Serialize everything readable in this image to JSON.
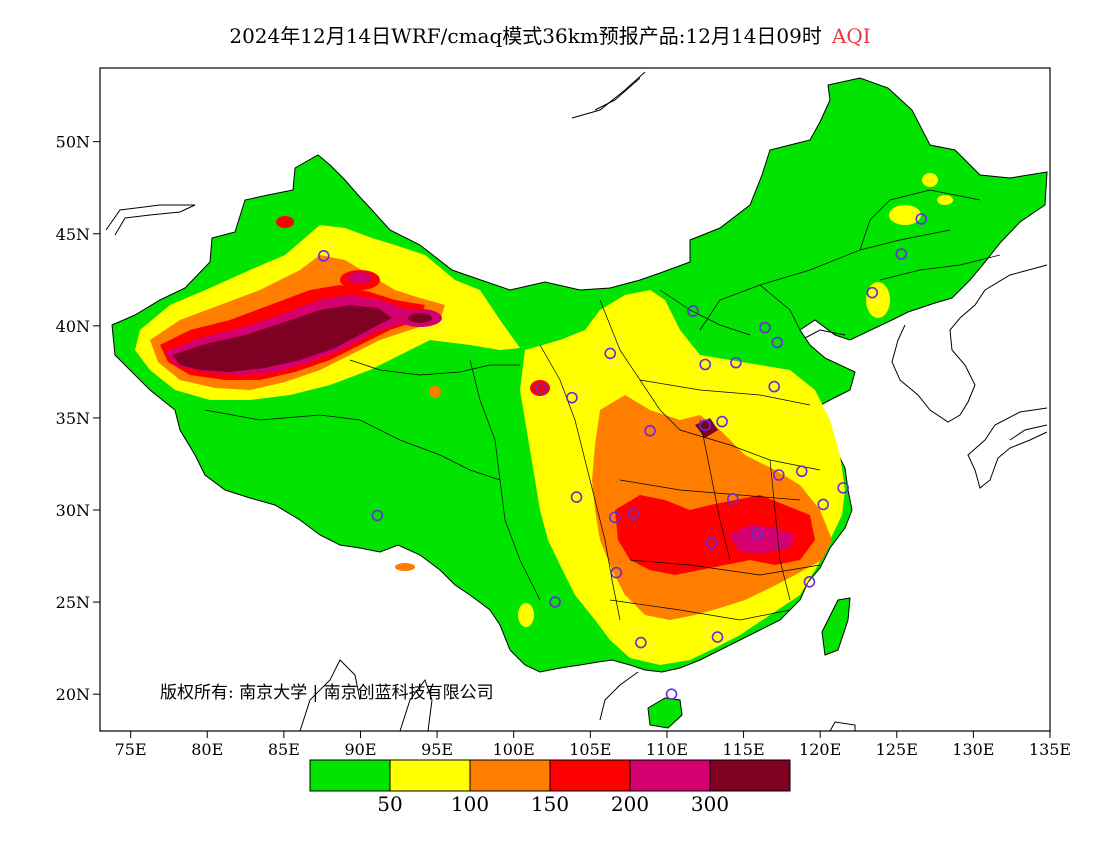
{
  "title": {
    "main": "2024年12月14日WRF/cmaq模式36km预报产品:12月14日09时",
    "variable": "AQI"
  },
  "copyright": "版权所有: 南京大学 | 南京创蓝科技有限公司",
  "axes": {
    "lon_ticks": [
      "75E",
      "80E",
      "85E",
      "90E",
      "95E",
      "100E",
      "105E",
      "110E",
      "115E",
      "120E",
      "125E",
      "130E",
      "135E"
    ],
    "lat_ticks": [
      "50N",
      "45N",
      "40N",
      "35N",
      "30N",
      "25N",
      "20N"
    ],
    "lon_range": [
      73,
      135
    ],
    "lat_range": [
      18,
      54
    ]
  },
  "legend": {
    "colors": [
      "#00e400",
      "#ffff00",
      "#ff7e00",
      "#ff0000",
      "#d4006f",
      "#7e0023"
    ],
    "labels": [
      "50",
      "100",
      "150",
      "200",
      "300"
    ]
  },
  "stations": [
    [
      87.6,
      43.8
    ],
    [
      126.6,
      45.8
    ],
    [
      125.3,
      43.9
    ],
    [
      123.4,
      41.8
    ],
    [
      116.4,
      39.9
    ],
    [
      117.2,
      39.1
    ],
    [
      111.7,
      40.8
    ],
    [
      106.3,
      38.5
    ],
    [
      112.5,
      37.9
    ],
    [
      114.5,
      38.0
    ],
    [
      117.0,
      36.7
    ],
    [
      101.8,
      36.6
    ],
    [
      103.8,
      36.1
    ],
    [
      108.9,
      34.3
    ],
    [
      113.6,
      34.8
    ],
    [
      112.5,
      34.6
    ],
    [
      118.8,
      32.1
    ],
    [
      117.3,
      31.9
    ],
    [
      120.2,
      30.3
    ],
    [
      121.5,
      31.2
    ],
    [
      114.3,
      30.6
    ],
    [
      112.9,
      28.2
    ],
    [
      115.9,
      28.7
    ],
    [
      119.3,
      26.1
    ],
    [
      104.1,
      30.7
    ],
    [
      106.6,
      29.6
    ],
    [
      106.7,
      26.6
    ],
    [
      102.7,
      25.0
    ],
    [
      108.3,
      22.8
    ],
    [
      113.3,
      23.1
    ],
    [
      110.3,
      20.0
    ],
    [
      91.1,
      29.7
    ],
    [
      107.8,
      29.8
    ]
  ]
}
